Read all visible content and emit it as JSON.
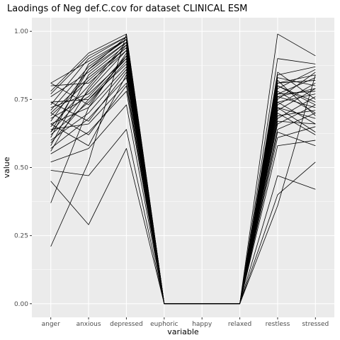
{
  "chart_data": {
    "type": "line",
    "title": "Laodings of Neg def.C.cov for dataset CLINICAL ESM",
    "xlabel": "variable",
    "ylabel": "value",
    "categories": [
      "anger",
      "anxious",
      "depressed",
      "euphoric",
      "happy",
      "relaxed",
      "restless",
      "stressed"
    ],
    "ylim": [
      -0.05,
      1.05
    ],
    "yticks": [
      0.0,
      0.25,
      0.5,
      0.75,
      1.0
    ],
    "ytick_labels": [
      "0.00",
      "0.25",
      "0.50",
      "0.75",
      "1.00"
    ],
    "grid": true,
    "legend": "none",
    "panel_color": "#ebebeb",
    "grid_color": "#ffffff",
    "line_color": "#000000",
    "series": [
      {
        "values": [
          0.21,
          0.52,
          0.99,
          0.0,
          0.0,
          0.0,
          0.99,
          0.91
        ]
      },
      {
        "values": [
          0.37,
          0.72,
          0.92,
          0.0,
          0.0,
          0.0,
          0.36,
          0.84
        ]
      },
      {
        "values": [
          0.45,
          0.29,
          0.57,
          0.0,
          0.0,
          0.0,
          0.47,
          0.42
        ]
      },
      {
        "values": [
          0.49,
          0.47,
          0.64,
          0.0,
          0.0,
          0.0,
          0.9,
          0.88
        ]
      },
      {
        "values": [
          0.52,
          0.57,
          0.73,
          0.0,
          0.0,
          0.0,
          0.4,
          0.52
        ]
      },
      {
        "values": [
          0.55,
          0.63,
          0.78,
          0.0,
          0.0,
          0.0,
          0.58,
          0.6
        ]
      },
      {
        "values": [
          0.57,
          0.68,
          0.83,
          0.0,
          0.0,
          0.0,
          0.61,
          0.65
        ]
      },
      {
        "values": [
          0.58,
          0.84,
          0.95,
          0.0,
          0.0,
          0.0,
          0.64,
          0.7
        ]
      },
      {
        "values": [
          0.6,
          0.7,
          0.86,
          0.0,
          0.0,
          0.0,
          0.66,
          0.73
        ]
      },
      {
        "values": [
          0.61,
          0.88,
          0.97,
          0.0,
          0.0,
          0.0,
          0.68,
          0.76
        ]
      },
      {
        "values": [
          0.62,
          0.74,
          0.89,
          0.0,
          0.0,
          0.0,
          0.7,
          0.62
        ]
      },
      {
        "values": [
          0.63,
          0.78,
          0.93,
          0.0,
          0.0,
          0.0,
          0.71,
          0.79
        ]
      },
      {
        "values": [
          0.64,
          0.66,
          0.81,
          0.0,
          0.0,
          0.0,
          0.72,
          0.68
        ]
      },
      {
        "values": [
          0.65,
          0.8,
          0.96,
          0.0,
          0.0,
          0.0,
          0.73,
          0.81
        ]
      },
      {
        "values": [
          0.66,
          0.72,
          0.87,
          0.0,
          0.0,
          0.0,
          0.74,
          0.66
        ]
      },
      {
        "values": [
          0.67,
          0.86,
          0.98,
          0.0,
          0.0,
          0.0,
          0.75,
          0.85
        ]
      },
      {
        "values": [
          0.68,
          0.76,
          0.91,
          0.0,
          0.0,
          0.0,
          0.76,
          0.72
        ]
      },
      {
        "values": [
          0.69,
          0.82,
          0.94,
          0.0,
          0.0,
          0.0,
          0.77,
          0.78
        ]
      },
      {
        "values": [
          0.7,
          0.62,
          0.8,
          0.0,
          0.0,
          0.0,
          0.78,
          0.7
        ]
      },
      {
        "values": [
          0.71,
          0.87,
          0.97,
          0.0,
          0.0,
          0.0,
          0.79,
          0.86
        ]
      },
      {
        "values": [
          0.72,
          0.77,
          0.9,
          0.0,
          0.0,
          0.0,
          0.8,
          0.74
        ]
      },
      {
        "values": [
          0.73,
          0.9,
          0.98,
          0.0,
          0.0,
          0.0,
          0.81,
          0.82
        ]
      },
      {
        "values": [
          0.74,
          0.75,
          0.88,
          0.0,
          0.0,
          0.0,
          0.82,
          0.69
        ]
      },
      {
        "values": [
          0.76,
          0.85,
          0.96,
          0.0,
          0.0,
          0.0,
          0.83,
          0.8
        ]
      },
      {
        "values": [
          0.78,
          0.92,
          0.99,
          0.0,
          0.0,
          0.0,
          0.84,
          0.87
        ]
      },
      {
        "values": [
          0.8,
          0.81,
          0.93,
          0.0,
          0.0,
          0.0,
          0.85,
          0.75
        ]
      },
      {
        "values": [
          0.81,
          0.89,
          0.97,
          0.0,
          0.0,
          0.0,
          0.77,
          0.83
        ]
      },
      {
        "values": [
          0.81,
          0.73,
          0.91,
          0.0,
          0.0,
          0.0,
          0.69,
          0.71
        ]
      },
      {
        "values": [
          0.56,
          0.79,
          0.95,
          0.0,
          0.0,
          0.0,
          0.74,
          0.77
        ]
      },
      {
        "values": [
          0.66,
          0.58,
          0.84,
          0.0,
          0.0,
          0.0,
          0.63,
          0.58
        ]
      },
      {
        "values": [
          0.7,
          0.83,
          0.94,
          0.0,
          0.0,
          0.0,
          0.8,
          0.73
        ]
      },
      {
        "values": [
          0.74,
          0.67,
          0.85,
          0.0,
          0.0,
          0.0,
          0.67,
          0.66
        ]
      },
      {
        "values": [
          0.59,
          0.75,
          0.9,
          0.0,
          0.0,
          0.0,
          0.72,
          0.63
        ]
      },
      {
        "values": [
          0.63,
          0.86,
          0.96,
          0.0,
          0.0,
          0.0,
          0.76,
          0.79
        ]
      },
      {
        "values": [
          0.77,
          0.91,
          0.98,
          0.0,
          0.0,
          0.0,
          0.81,
          0.84
        ]
      }
    ]
  }
}
